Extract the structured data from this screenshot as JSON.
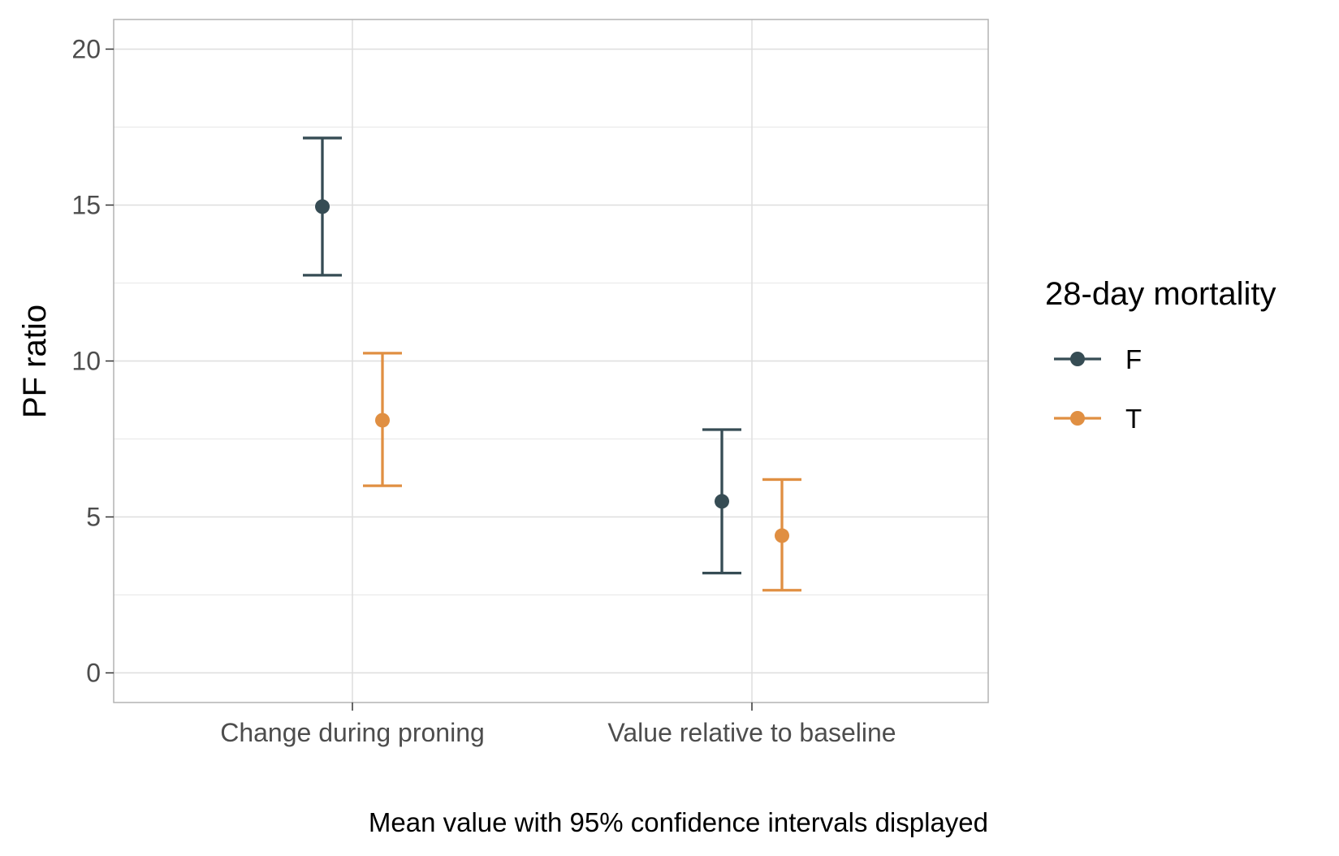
{
  "chart_data": {
    "type": "errorbar",
    "ylabel": "PF ratio",
    "xlabel": "",
    "caption": "Mean value with 95% confidence intervals displayed",
    "categories": [
      "Change during proning",
      "Value relative to baseline"
    ],
    "ylim": [
      -0.95,
      20.95
    ],
    "yticks": [
      0,
      5,
      10,
      15,
      20
    ],
    "y_tick_labels": [
      "0",
      "5",
      "10",
      "15",
      "20"
    ],
    "grid": true,
    "legend": {
      "title": "28-day mortality",
      "position": "right"
    },
    "series": [
      {
        "name": "F",
        "color": "#364C54",
        "points": [
          {
            "category": "Change during proning",
            "mean": 14.95,
            "lower": 12.75,
            "upper": 17.15
          },
          {
            "category": "Value relative to baseline",
            "mean": 5.5,
            "lower": 3.2,
            "upper": 7.8
          }
        ]
      },
      {
        "name": "T",
        "color": "#E08F42",
        "points": [
          {
            "category": "Change during proning",
            "mean": 8.1,
            "lower": 6.0,
            "upper": 10.25
          },
          {
            "category": "Value relative to baseline",
            "mean": 4.4,
            "lower": 2.65,
            "upper": 6.2
          }
        ]
      }
    ]
  }
}
